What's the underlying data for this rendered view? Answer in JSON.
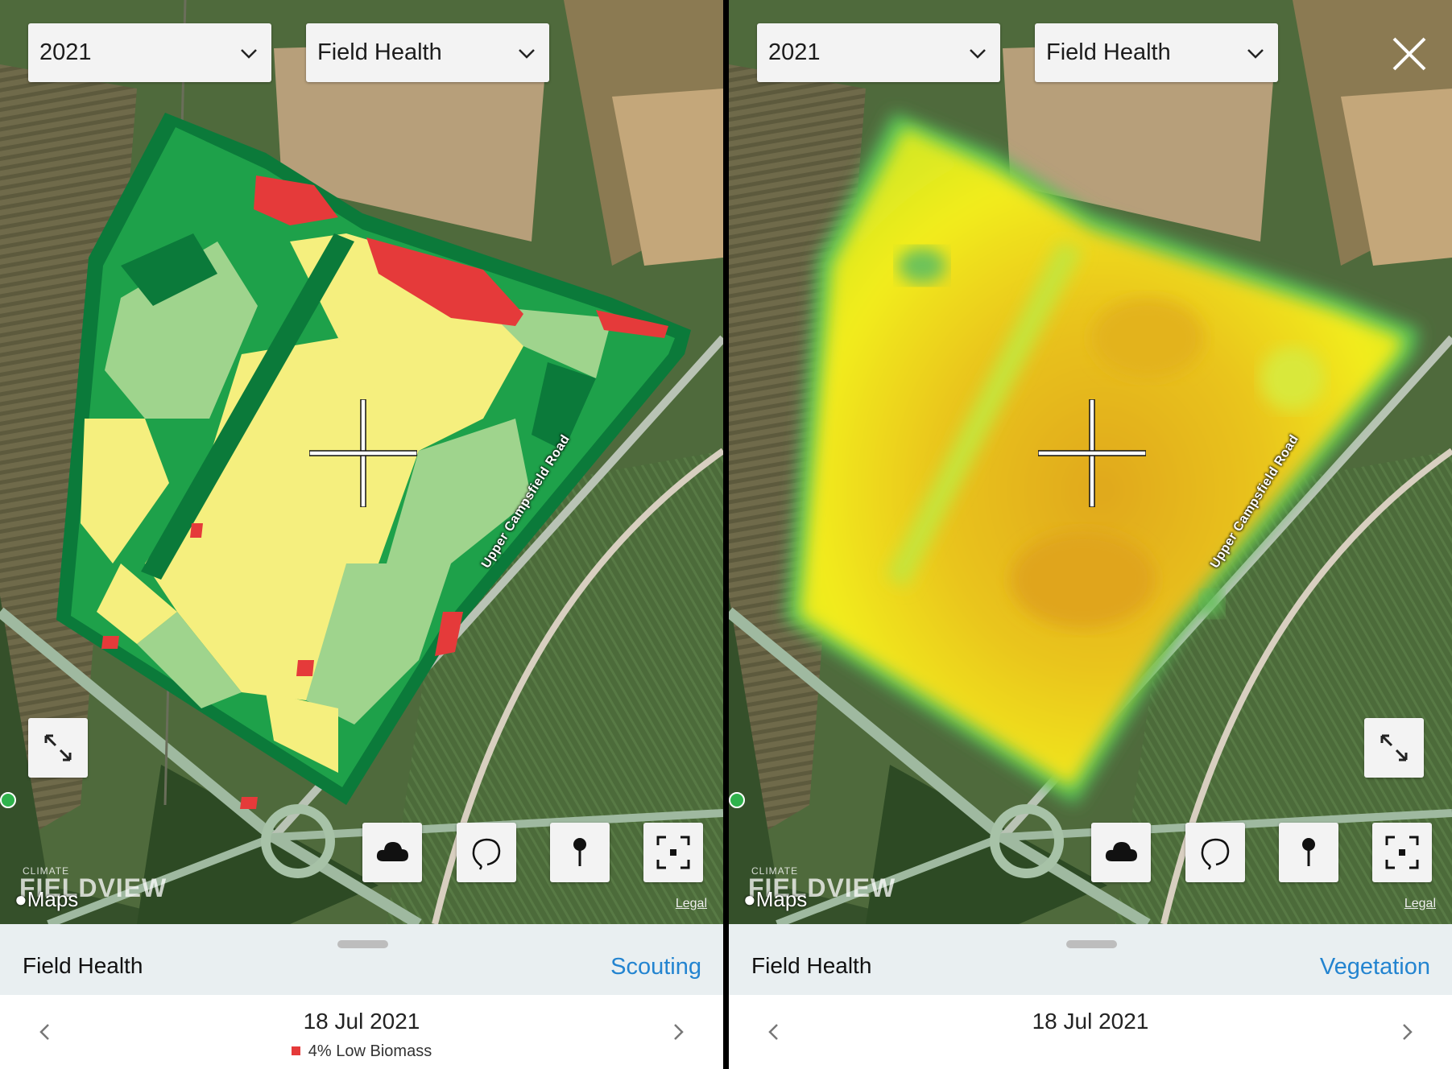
{
  "colors": {
    "scouting_link": "#2384d0",
    "low_biomass": "#e53a3a",
    "health_dark_green": "#0b7a3a",
    "health_green": "#1ea14a",
    "health_light_green": "#9fd48d",
    "health_yellow": "#f5ef7e",
    "vegetation_yellow": "#f2ec1a",
    "vegetation_orange": "#e0a81e"
  },
  "left": {
    "year_dropdown": {
      "value": "2021",
      "icon": "chevron-down-icon"
    },
    "layer_dropdown": {
      "value": "Field Health",
      "icon": "chevron-down-icon"
    },
    "map": {
      "road_label": "Upper Campsfield Road",
      "brand_small": "CLIMATE",
      "brand_big": "FIELDVIEW",
      "maps_label": "Maps",
      "legal_label": "Legal"
    },
    "tools": [
      "cloud-icon",
      "lasso-icon",
      "pin-icon",
      "focus-icon"
    ],
    "sheet": {
      "title": "Field Health",
      "link": "Scouting",
      "date": "18 Jul 2021",
      "summary": "4% Low Biomass"
    }
  },
  "right": {
    "year_dropdown": {
      "value": "2021",
      "icon": "chevron-down-icon"
    },
    "layer_dropdown": {
      "value": "Field Health",
      "icon": "chevron-down-icon"
    },
    "map": {
      "road_label": "Upper Campsfield Road",
      "brand_small": "CLIMATE",
      "brand_big": "FIELDVIEW",
      "maps_label": "Maps",
      "legal_label": "Legal"
    },
    "tools": [
      "cloud-icon",
      "lasso-icon",
      "pin-icon",
      "focus-icon"
    ],
    "sheet": {
      "title": "Field Health",
      "link": "Vegetation",
      "date": "18 Jul 2021"
    }
  }
}
